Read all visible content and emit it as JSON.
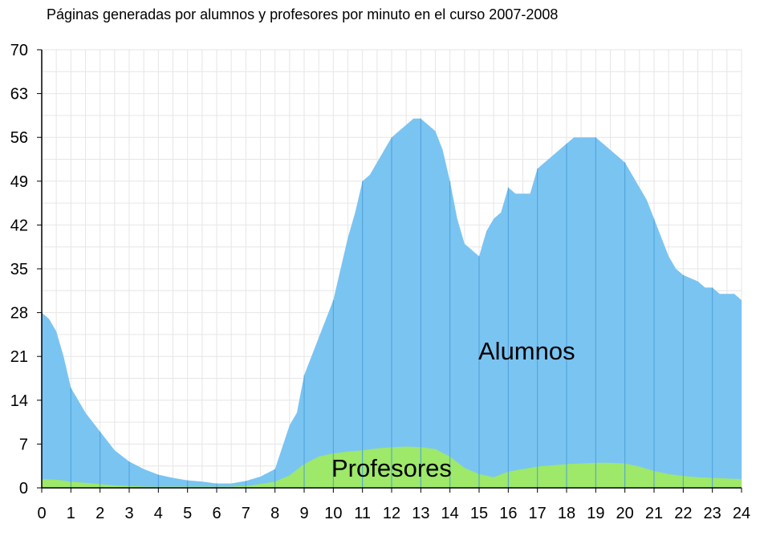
{
  "chart_data": {
    "type": "area",
    "title": "Páginas generadas por alumnos y profesores por minuto en el curso 2007-2008",
    "xlabel": "",
    "ylabel": "",
    "xlim": [
      0,
      24
    ],
    "ylim": [
      0,
      70
    ],
    "x_ticks": [
      "0",
      "1",
      "2",
      "3",
      "4",
      "5",
      "6",
      "7",
      "8",
      "9",
      "10",
      "11",
      "12",
      "13",
      "14",
      "15",
      "16",
      "17",
      "18",
      "19",
      "20",
      "21",
      "22",
      "23",
      "24"
    ],
    "y_ticks": [
      "0",
      "7",
      "14",
      "21",
      "28",
      "35",
      "42",
      "49",
      "56",
      "63",
      "70"
    ],
    "grid": true,
    "stacked": true,
    "series": [
      {
        "name": "Profesores",
        "color": "#9ee86a",
        "x": [
          0,
          0.5,
          1,
          1.5,
          2,
          2.5,
          3,
          3.5,
          4,
          4.5,
          5,
          5.5,
          6,
          6.5,
          7,
          7.5,
          8,
          8.5,
          9,
          9.5,
          10,
          10.5,
          11,
          11.5,
          12,
          12.5,
          13,
          13.5,
          14,
          14.5,
          15,
          15.5,
          16,
          16.5,
          17,
          17.5,
          18,
          18.5,
          19,
          19.5,
          20,
          20.5,
          21,
          21.5,
          22,
          22.5,
          23,
          23.5,
          24
        ],
        "values": [
          1.4,
          1.3,
          1.0,
          0.8,
          0.6,
          0.4,
          0.3,
          0.2,
          0.2,
          0.2,
          0.2,
          0.2,
          0.2,
          0.2,
          0.3,
          0.6,
          1.0,
          2.0,
          3.8,
          5.0,
          5.5,
          5.8,
          6.0,
          6.3,
          6.5,
          6.6,
          6.5,
          6.2,
          5.0,
          3.2,
          2.2,
          1.7,
          2.6,
          3.0,
          3.4,
          3.6,
          3.8,
          3.9,
          4.0,
          4.0,
          3.9,
          3.4,
          2.7,
          2.2,
          1.9,
          1.7,
          1.6,
          1.5,
          1.4
        ]
      },
      {
        "name": "Alumnos",
        "color": "#7ac4f2",
        "x": [
          0,
          0.25,
          0.5,
          0.75,
          1,
          1.5,
          2,
          2.5,
          3,
          3.5,
          4,
          4.5,
          5,
          5.5,
          6,
          6.5,
          7,
          7.5,
          8,
          8.25,
          8.5,
          8.75,
          9,
          9.25,
          9.5,
          9.75,
          10,
          10.25,
          10.5,
          10.75,
          11,
          11.25,
          11.5,
          11.75,
          12,
          12.25,
          12.5,
          12.75,
          13,
          13.25,
          13.5,
          13.75,
          14,
          14.25,
          14.5,
          14.75,
          15,
          15.25,
          15.5,
          15.75,
          16,
          16.25,
          16.5,
          16.75,
          17,
          17.25,
          17.5,
          17.75,
          18,
          18.25,
          18.5,
          18.75,
          19,
          19.25,
          19.5,
          19.75,
          20,
          20.25,
          20.5,
          20.75,
          21,
          21.25,
          21.5,
          21.75,
          22,
          22.25,
          22.5,
          22.75,
          23,
          23.25,
          23.5,
          23.75,
          24
        ],
        "values": [
          28,
          27,
          25,
          21,
          16,
          12,
          9,
          6,
          4.2,
          3.0,
          2.1,
          1.6,
          1.2,
          1.0,
          0.7,
          0.7,
          1.1,
          1.8,
          3,
          6.5,
          10,
          12,
          18,
          21,
          24,
          27,
          30,
          35,
          40,
          44,
          49,
          50,
          52,
          54,
          56,
          57,
          58,
          59,
          59,
          58,
          57,
          54,
          49,
          43,
          39,
          38,
          37,
          41,
          43,
          44,
          48,
          47,
          47,
          47,
          51,
          52,
          53,
          54,
          55,
          56,
          56,
          56,
          56,
          55,
          54,
          53,
          52,
          50,
          48,
          46,
          43,
          40,
          37,
          35,
          34,
          33.5,
          33,
          32,
          32,
          31,
          31,
          31,
          30
        ]
      }
    ]
  }
}
